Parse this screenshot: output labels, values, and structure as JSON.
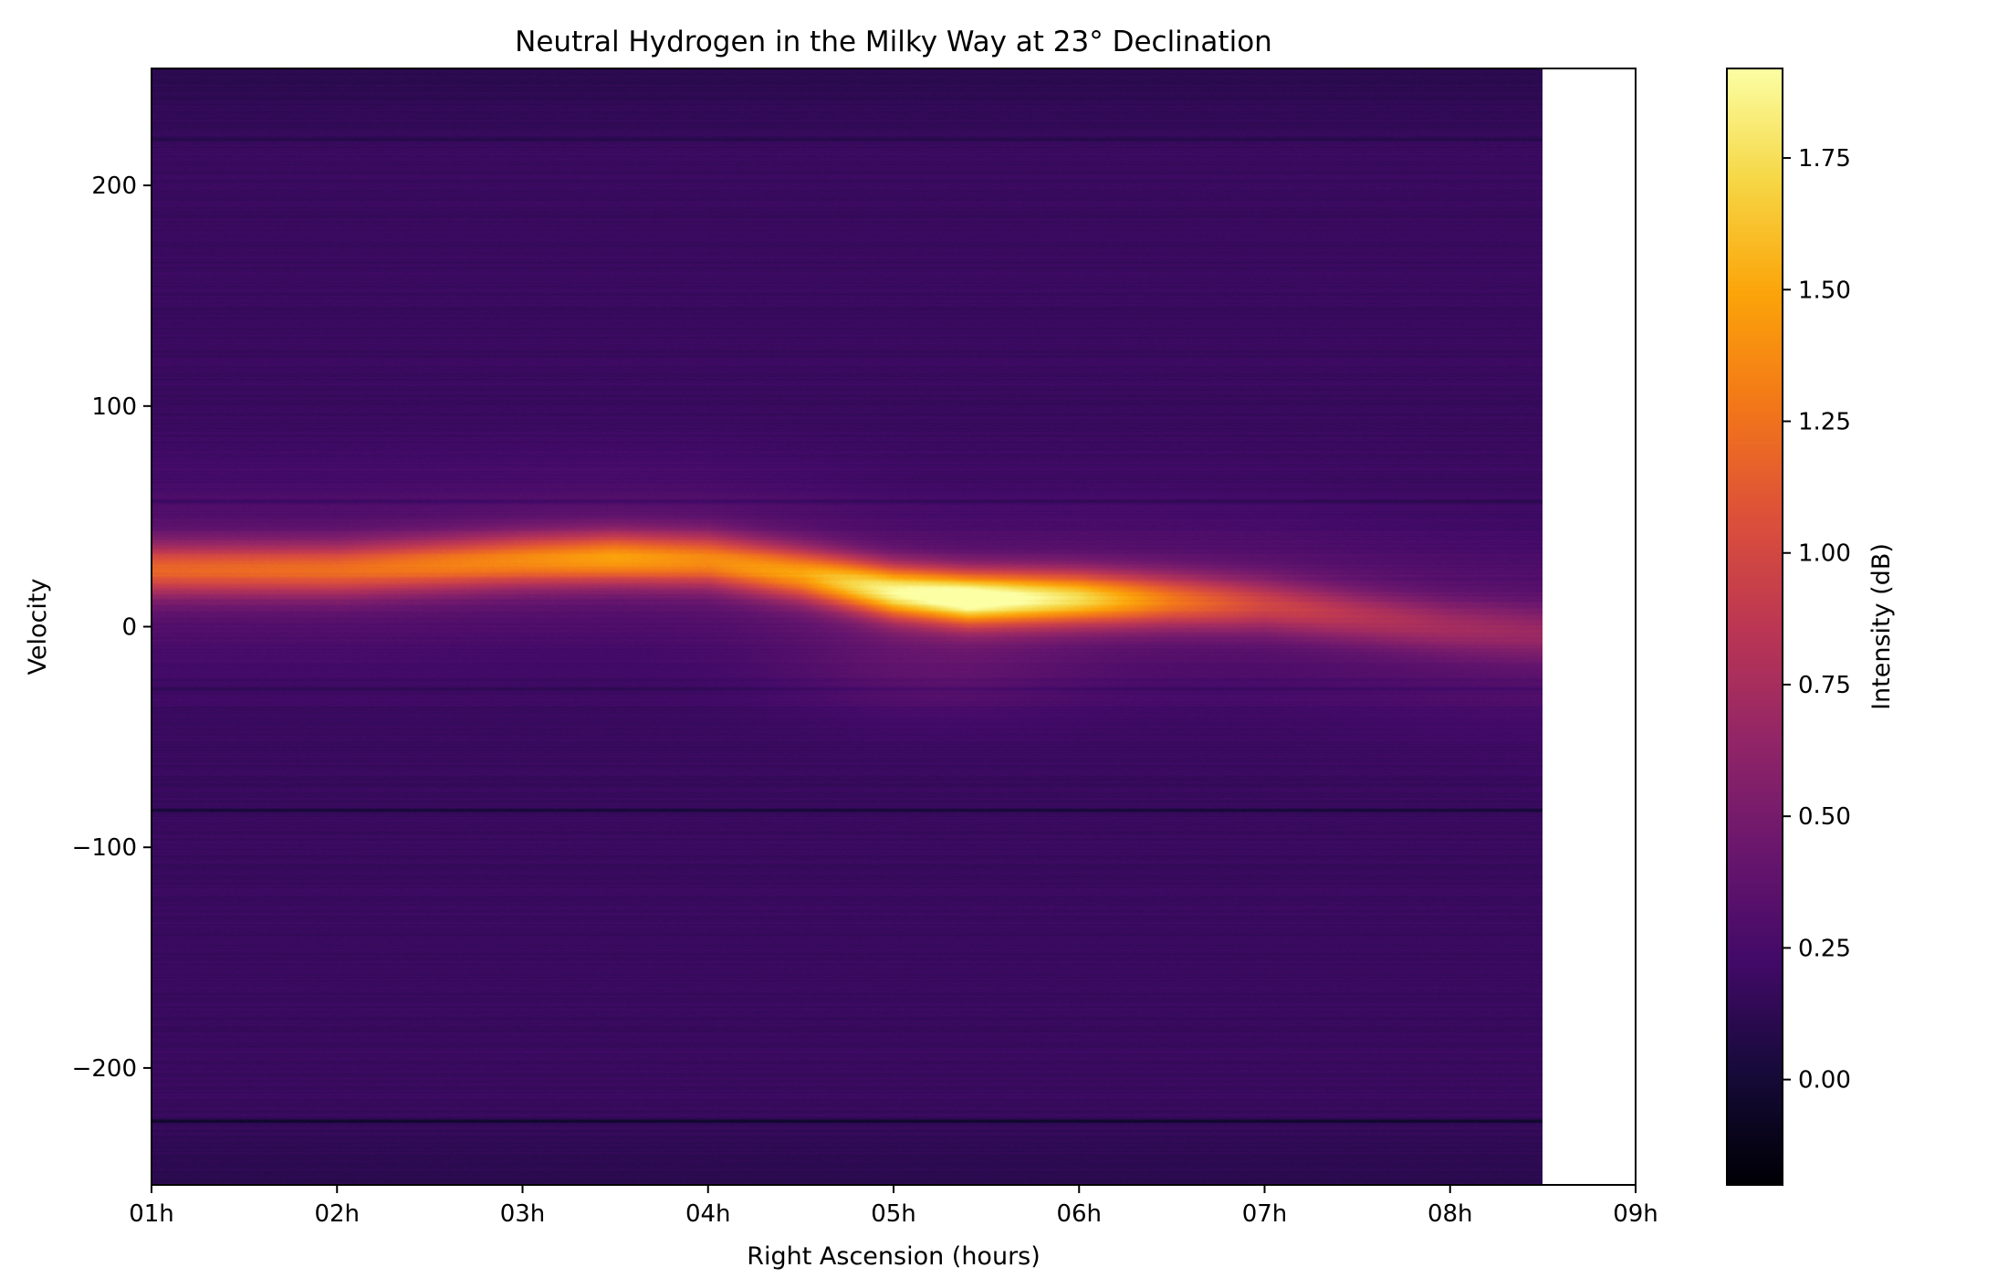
{
  "chart_data": {
    "type": "heatmap",
    "title": "Neutral Hydrogen in the Milky Way at 23° Declination",
    "xlabel": "Right Ascension (hours)",
    "ylabel": "Velocity",
    "colorbar_label": "Intensity (dB)",
    "colormap": "inferno",
    "x_range_hours": [
      1,
      9
    ],
    "data_x_extent_hours": [
      1,
      8.5
    ],
    "y_range": [
      -253,
      253
    ],
    "x_ticks": [
      1,
      2,
      3,
      4,
      5,
      6,
      7,
      8,
      9
    ],
    "x_tick_labels": [
      "01h",
      "02h",
      "03h",
      "04h",
      "05h",
      "06h",
      "07h",
      "08h",
      "09h"
    ],
    "y_ticks": [
      200,
      100,
      0,
      -100,
      -200
    ],
    "y_tick_labels": [
      "200",
      "100",
      "0",
      "−100",
      "−200"
    ],
    "color_range": [
      -0.2,
      1.92
    ],
    "colorbar_ticks": [
      1.75,
      1.5,
      1.25,
      1.0,
      0.75,
      0.5,
      0.25,
      0.0
    ],
    "colorbar_tick_labels": [
      "1.75",
      "1.50",
      "1.25",
      "1.00",
      "0.75",
      "0.50",
      "0.25",
      "0.00"
    ],
    "background_level": 0.18,
    "emission_ridge": [
      {
        "ra_hours": 1.0,
        "velocity": 26,
        "intensity": 1.0
      },
      {
        "ra_hours": 2.0,
        "velocity": 26,
        "intensity": 1.05
      },
      {
        "ra_hours": 3.0,
        "velocity": 30,
        "intensity": 1.2
      },
      {
        "ra_hours": 3.5,
        "velocity": 31,
        "intensity": 1.3
      },
      {
        "ra_hours": 4.0,
        "velocity": 30,
        "intensity": 1.2
      },
      {
        "ra_hours": 4.5,
        "velocity": 24,
        "intensity": 1.3
      },
      {
        "ra_hours": 5.0,
        "velocity": 16,
        "intensity": 1.7
      },
      {
        "ra_hours": 5.4,
        "velocity": 13,
        "intensity": 1.92
      },
      {
        "ra_hours": 6.0,
        "velocity": 13,
        "intensity": 1.55
      },
      {
        "ra_hours": 6.5,
        "velocity": 12,
        "intensity": 1.1
      },
      {
        "ra_hours": 7.0,
        "velocity": 10,
        "intensity": 0.8
      },
      {
        "ra_hours": 7.5,
        "velocity": 5,
        "intensity": 0.65
      },
      {
        "ra_hours": 8.0,
        "velocity": 0,
        "intensity": 0.55
      },
      {
        "ra_hours": 8.5,
        "velocity": -3,
        "intensity": 0.5
      }
    ],
    "dark_bands_velocity": [
      -83,
      -224,
      221,
      57,
      -28
    ]
  }
}
